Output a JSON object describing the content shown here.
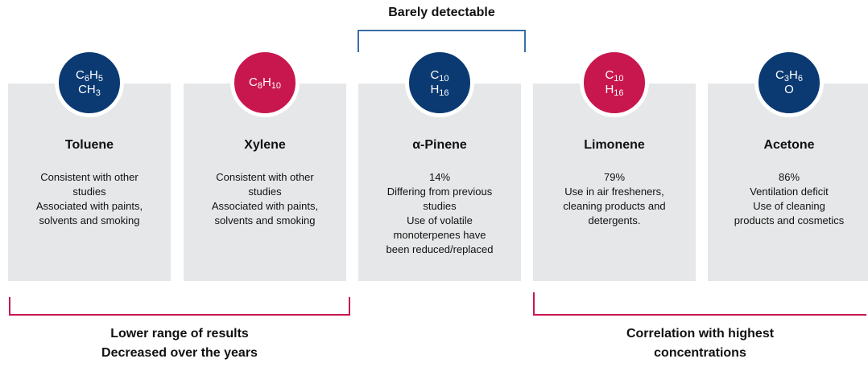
{
  "cards": [
    {
      "color": "#0b3a73",
      "formula": [
        [
          {
            "el": "C",
            "n": "6"
          },
          {
            "el": "H",
            "n": "5"
          }
        ],
        [
          {
            "el": "CH",
            "n": "3"
          }
        ]
      ],
      "name": "Toluene",
      "description": [
        "Consistent with other",
        "studies",
        "Associated with paints,",
        "solvents and smoking"
      ]
    },
    {
      "color": "#c8174e",
      "formula": [
        [
          {
            "el": "C",
            "n": "8"
          },
          {
            "el": "H",
            "n": "10"
          }
        ]
      ],
      "name": "Xylene",
      "description": [
        "Consistent with other",
        "studies",
        "Associated with paints,",
        "solvents and smoking"
      ]
    },
    {
      "color": "#0b3a73",
      "formula": [
        [
          {
            "el": "C",
            "n": "10"
          }
        ],
        [
          {
            "el": "H",
            "n": "16"
          }
        ]
      ],
      "name": "α-Pinene",
      "description": [
        "14%",
        "Differing from previous",
        "studies",
        "Use of volatile",
        "monoterpenes have",
        "been reduced/replaced"
      ]
    },
    {
      "color": "#c8174e",
      "formula": [
        [
          {
            "el": "C",
            "n": "10"
          }
        ],
        [
          {
            "el": "H",
            "n": "16"
          }
        ]
      ],
      "name": "Limonene",
      "description": [
        "79%",
        "Use in air fresheners,",
        "cleaning products and",
        "detergents."
      ]
    },
    {
      "color": "#0b3a73",
      "formula": [
        [
          {
            "el": "C",
            "n": "3"
          },
          {
            "el": "H",
            "n": "6"
          }
        ],
        [
          {
            "el": "O"
          }
        ]
      ],
      "name": "Acetone",
      "description": [
        "86%",
        "Ventilation deficit",
        "Use of cleaning",
        "products and cosmetics"
      ]
    }
  ],
  "top_note": "Barely detectable",
  "bottom_left_note": [
    "Lower range of results",
    "Decreased over the years"
  ],
  "bottom_right_note": [
    "Correlation with highest",
    "concentrations"
  ]
}
